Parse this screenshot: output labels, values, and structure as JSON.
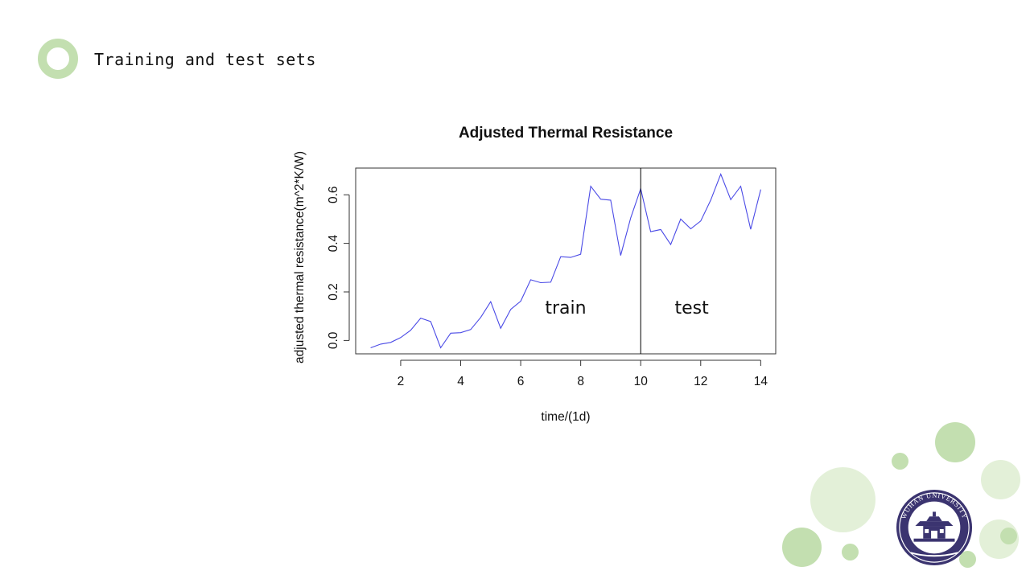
{
  "slide": {
    "title": "Training and test sets",
    "accent_color": "#c3dfb0",
    "icon": "ring-icon"
  },
  "logo": {
    "text": "WUHAN UNIVERSITY",
    "primary_color": "#3b3470",
    "icon": "university-seal-icon"
  },
  "chart_data": {
    "type": "line",
    "title": "Adjusted Thermal Resistance",
    "xlabel": "time/(1d)",
    "ylabel": "adjusted thermal resistance(m^2*K/W)",
    "xlim": [
      0.5,
      14.5
    ],
    "ylim": [
      -0.055,
      0.71
    ],
    "x_ticks": [
      2,
      4,
      6,
      8,
      10,
      12,
      14
    ],
    "y_ticks": [
      0.0,
      0.2,
      0.4,
      0.6
    ],
    "y_tick_labels": [
      "0.0",
      "0.2",
      "0.4",
      "0.6"
    ],
    "series_color": "#4a4ae6",
    "grid": false,
    "series": [
      {
        "x": [
          1.0,
          1.333,
          1.667,
          2.0,
          2.333,
          2.667,
          3.0,
          3.333,
          3.667,
          4.0,
          4.333,
          4.667,
          5.0,
          5.333,
          5.667,
          6.0,
          6.333,
          6.667,
          7.0,
          7.333,
          7.667,
          8.0,
          8.333,
          8.667,
          9.0,
          9.333,
          9.667,
          10.0,
          10.333,
          10.667,
          11.0,
          11.333,
          11.667,
          12.0,
          12.333,
          12.667,
          13.0,
          13.333,
          13.667,
          14.0
        ],
        "values": [
          -0.03,
          -0.015,
          -0.008,
          0.012,
          0.042,
          0.092,
          0.078,
          -0.03,
          0.03,
          0.032,
          0.045,
          0.095,
          0.16,
          0.05,
          0.128,
          0.162,
          0.25,
          0.238,
          0.24,
          0.345,
          0.342,
          0.355,
          0.635,
          0.582,
          0.578,
          0.35,
          0.505,
          0.625,
          0.448,
          0.457,
          0.395,
          0.5,
          0.46,
          0.492,
          0.578,
          0.685,
          0.58,
          0.635,
          0.458,
          0.622
        ]
      }
    ],
    "split": {
      "x": 10
    },
    "annotations": [
      {
        "text": "train",
        "x": 7.5,
        "y": 0.11
      },
      {
        "text": "test",
        "x": 11.7,
        "y": 0.11
      }
    ]
  }
}
